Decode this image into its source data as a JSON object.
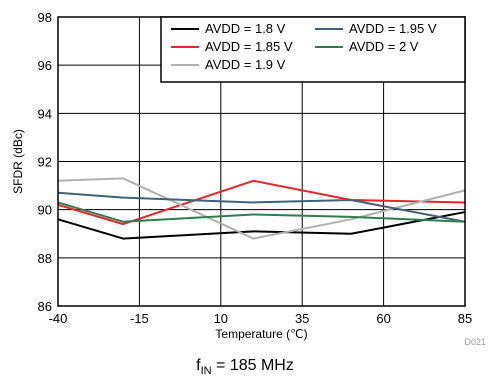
{
  "chart_data": {
    "type": "line",
    "x": [
      -40,
      -20,
      20,
      50,
      85
    ],
    "series": [
      {
        "name": "AVDD = 1.8 V",
        "color": "#000000",
        "values": [
          89.6,
          88.8,
          89.1,
          89.0,
          89.9
        ]
      },
      {
        "name": "AVDD = 1.85 V",
        "color": "#e8262a",
        "values": [
          90.2,
          89.4,
          91.2,
          90.4,
          90.3
        ]
      },
      {
        "name": "AVDD = 1.9 V",
        "color": "#b0b0b0",
        "values": [
          91.2,
          91.3,
          88.8,
          89.6,
          90.8
        ]
      },
      {
        "name": "AVDD = 1.95 V",
        "color": "#3e6379",
        "values": [
          90.7,
          90.5,
          90.3,
          90.4,
          89.5
        ]
      },
      {
        "name": "AVDD = 2 V",
        "color": "#2e7d4e",
        "values": [
          90.3,
          89.5,
          89.8,
          89.7,
          89.5
        ]
      }
    ],
    "xlim": [
      -40,
      85
    ],
    "ylim": [
      86,
      98
    ],
    "xticks": [
      "-40",
      "-15",
      "10",
      "35",
      "60",
      "85"
    ],
    "yticks": [
      "86",
      "88",
      "90",
      "92",
      "94",
      "96",
      "98"
    ],
    "xlabel": "Temperature (℃)",
    "ylabel": "SFDR (dBc)",
    "grid": true,
    "legend_position": "top-right",
    "figure_code": "D021"
  },
  "caption": {
    "prefix": "f",
    "subscript": "IN",
    "suffix": " = 185 MHz"
  }
}
